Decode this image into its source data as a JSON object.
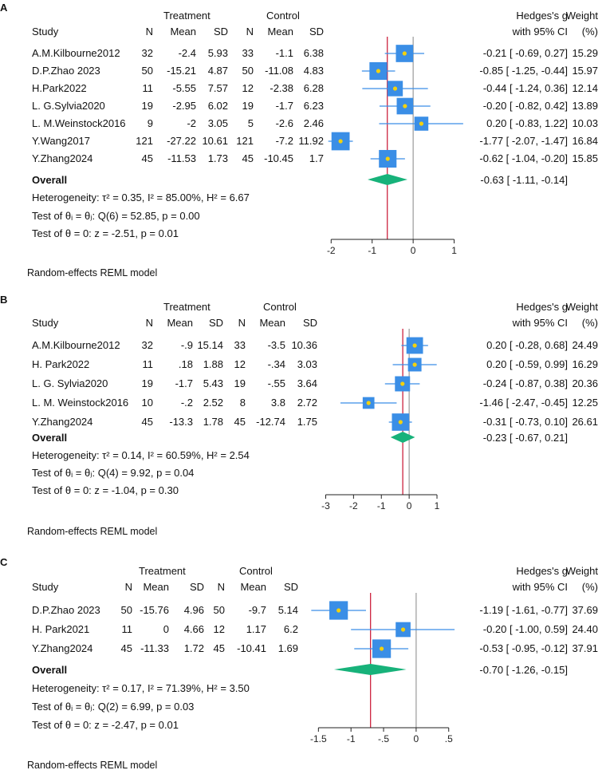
{
  "chart_data": [
    {
      "type": "forest",
      "panel_label": "A",
      "headers": {
        "study": "Study",
        "treatment": "Treatment",
        "control": "Control",
        "n": "N",
        "mean": "Mean",
        "sd": "SD",
        "effect_line1": "Hedges's g",
        "effect_line2": "with 95% CI",
        "weight_line1": "Weight",
        "weight_line2": "(%)"
      },
      "studies": [
        {
          "study": "A.M.Kilbourne2012",
          "t_n": "32",
          "t_mean": "-2.4",
          "t_sd": "5.93",
          "c_n": "33",
          "c_mean": "-1.1",
          "c_sd": "6.38",
          "g": -0.21,
          "lo": -0.69,
          "hi": 0.27,
          "ci_text": "-0.21 [ -0.69,  0.27]",
          "weight": 15.29,
          "weight_text": "15.29"
        },
        {
          "study": "D.P.Zhao 2023",
          "t_n": "50",
          "t_mean": "-15.21",
          "t_sd": "4.87",
          "c_n": "50",
          "c_mean": "-11.08",
          "c_sd": "4.83",
          "g": -0.85,
          "lo": -1.25,
          "hi": -0.44,
          "ci_text": "-0.85 [ -1.25, -0.44]",
          "weight": 15.97,
          "weight_text": "15.97"
        },
        {
          "study": "H.Park2022",
          "t_n": "11",
          "t_mean": "-5.55",
          "t_sd": "7.57",
          "c_n": "12",
          "c_mean": "-2.38",
          "c_sd": "6.28",
          "g": -0.44,
          "lo": -1.24,
          "hi": 0.36,
          "ci_text": "-0.44 [ -1.24,  0.36]",
          "weight": 12.14,
          "weight_text": "12.14"
        },
        {
          "study": "L. G.Sylvia2020",
          "t_n": "19",
          "t_mean": "-2.95",
          "t_sd": "6.02",
          "c_n": "19",
          "c_mean": "-1.7",
          "c_sd": "6.23",
          "g": -0.2,
          "lo": -0.82,
          "hi": 0.42,
          "ci_text": "-0.20 [ -0.82,  0.42]",
          "weight": 13.89,
          "weight_text": "13.89"
        },
        {
          "study": "L. M.Weinstock2016",
          "t_n": "9",
          "t_mean": "-2",
          "t_sd": "3.05",
          "c_n": "5",
          "c_mean": "-2.6",
          "c_sd": "2.46",
          "g": 0.2,
          "lo": -0.83,
          "hi": 1.22,
          "ci_text": "0.20 [ -0.83,  1.22]",
          "weight": 10.03,
          "weight_text": "10.03"
        },
        {
          "study": "Y.Wang2017",
          "t_n": "121",
          "t_mean": "-27.22",
          "t_sd": "10.61",
          "c_n": "121",
          "c_mean": "-7.2",
          "c_sd": "11.92",
          "g": -1.77,
          "lo": -2.07,
          "hi": -1.47,
          "ci_text": "-1.77 [ -2.07, -1.47]",
          "weight": 16.84,
          "weight_text": "16.84"
        },
        {
          "study": "Y.Zhang2024",
          "t_n": "45",
          "t_mean": "-11.53",
          "t_sd": "1.73",
          "c_n": "45",
          "c_mean": "-10.45",
          "c_sd": "1.7",
          "g": -0.62,
          "lo": -1.04,
          "hi": -0.2,
          "ci_text": "-0.62 [ -1.04, -0.20]",
          "weight": 15.85,
          "weight_text": "15.85"
        }
      ],
      "overall": {
        "label": "Overall",
        "g": -0.63,
        "lo": -1.11,
        "hi": -0.14,
        "ci_text": "-0.63 [ -1.11, -0.14]"
      },
      "stats": {
        "heterogeneity": "Heterogeneity: τ² = 0.35, I² = 85.00%, H² = 6.67",
        "test_equal": "Test of θᵢ = θⱼ: Q(6) = 52.85, p = 0.00",
        "test_zero": "Test of θ = 0: z = -2.51, p = 0.01"
      },
      "x_range": [
        -2.2,
        1.3
      ],
      "x_ticks": [
        -2,
        -1,
        0,
        1
      ],
      "x_tick_labels": [
        "-2",
        "-1",
        "0",
        "1"
      ],
      "footnote": "Random-effects REML model"
    },
    {
      "type": "forest",
      "panel_label": "B",
      "headers": {
        "study": "Study",
        "treatment": "Treatment",
        "control": "Control",
        "n": "N",
        "mean": "Mean",
        "sd": "SD",
        "effect_line1": "Hedges's g",
        "effect_line2": "with 95% CI",
        "weight_line1": "Weight",
        "weight_line2": "(%)"
      },
      "studies": [
        {
          "study": "A.M.Kilbourne2012",
          "t_n": "32",
          "t_mean": "-.9",
          "t_sd": "15.14",
          "c_n": "33",
          "c_mean": "-3.5",
          "c_sd": "10.36",
          "g": 0.2,
          "lo": -0.28,
          "hi": 0.68,
          "ci_text": "0.20 [ -0.28,  0.68]",
          "weight": 24.49,
          "weight_text": "24.49"
        },
        {
          "study": "H. Park2022",
          "t_n": "11",
          "t_mean": ".18",
          "t_sd": "1.88",
          "c_n": "12",
          "c_mean": "-.34",
          "c_sd": "3.03",
          "g": 0.2,
          "lo": -0.59,
          "hi": 0.99,
          "ci_text": "0.20 [ -0.59,  0.99]",
          "weight": 16.29,
          "weight_text": "16.29"
        },
        {
          "study": "L. G. Sylvia2020",
          "t_n": "19",
          "t_mean": "-1.7",
          "t_sd": "5.43",
          "c_n": "19",
          "c_mean": "-.55",
          "c_sd": "3.64",
          "g": -0.24,
          "lo": -0.87,
          "hi": 0.38,
          "ci_text": "-0.24 [ -0.87,  0.38]",
          "weight": 20.36,
          "weight_text": "20.36"
        },
        {
          "study": "L. M. Weinstock2016",
          "t_n": "10",
          "t_mean": "-.2",
          "t_sd": "2.52",
          "c_n": "8",
          "c_mean": "3.8",
          "c_sd": "2.72",
          "g": -1.46,
          "lo": -2.47,
          "hi": -0.45,
          "ci_text": "-1.46 [ -2.47, -0.45]",
          "weight": 12.25,
          "weight_text": "12.25"
        },
        {
          "study": "Y.Zhang2024",
          "t_n": "45",
          "t_mean": "-13.3",
          "t_sd": "1.78",
          "c_n": "45",
          "c_mean": "-12.74",
          "c_sd": "1.75",
          "g": -0.31,
          "lo": -0.73,
          "hi": 0.1,
          "ci_text": "-0.31 [ -0.73,  0.10]",
          "weight": 26.61,
          "weight_text": "26.61"
        }
      ],
      "overall": {
        "label": "Overall",
        "g": -0.23,
        "lo": -0.67,
        "hi": 0.21,
        "ci_text": "-0.23 [ -0.67,  0.21]"
      },
      "stats": {
        "heterogeneity": "Heterogeneity: τ² = 0.14, I² = 60.59%, H² = 2.54",
        "test_equal": "Test of θᵢ = θⱼ: Q(4) = 9.92, p = 0.04",
        "test_zero": "Test of θ = 0: z = -1.04, p = 0.30"
      },
      "x_range": [
        -3.1,
        1.2
      ],
      "x_ticks": [
        -3,
        -2,
        -1,
        0,
        1
      ],
      "x_tick_labels": [
        "-3",
        "-2",
        "-1",
        "0",
        "1"
      ],
      "footnote": "Random-effects REML model"
    },
    {
      "type": "forest",
      "panel_label": "C",
      "headers": {
        "study": "Study",
        "treatment": "Treatment",
        "control": "Control",
        "n": "N",
        "mean": "Mean",
        "sd": "SD",
        "effect_line1": "Hedges's g",
        "effect_line2": "with 95% CI",
        "weight_line1": "Weight",
        "weight_line2": "(%)"
      },
      "studies": [
        {
          "study": "D.P.Zhao 2023",
          "t_n": "50",
          "t_mean": "-15.76",
          "t_sd": "4.96",
          "c_n": "50",
          "c_mean": "-9.7",
          "c_sd": "5.14",
          "g": -1.19,
          "lo": -1.61,
          "hi": -0.77,
          "ci_text": "-1.19 [ -1.61, -0.77]",
          "weight": 37.69,
          "weight_text": "37.69"
        },
        {
          "study": "H. Park2021",
          "t_n": "11",
          "t_mean": "0",
          "t_sd": "4.66",
          "c_n": "12",
          "c_mean": "1.17",
          "c_sd": "6.2",
          "g": -0.2,
          "lo": -1.0,
          "hi": 0.59,
          "ci_text": "-0.20 [ -1.00,  0.59]",
          "weight": 24.4,
          "weight_text": "24.40"
        },
        {
          "study": "Y.Zhang2024",
          "t_n": "45",
          "t_mean": "-11.33",
          "t_sd": "1.72",
          "c_n": "45",
          "c_mean": "-10.41",
          "c_sd": "1.69",
          "g": -0.53,
          "lo": -0.95,
          "hi": -0.12,
          "ci_text": "-0.53 [ -0.95, -0.12]",
          "weight": 37.91,
          "weight_text": "37.91"
        }
      ],
      "overall": {
        "label": "Overall",
        "g": -0.7,
        "lo": -1.26,
        "hi": -0.15,
        "ci_text": "-0.70 [ -1.26, -0.15]"
      },
      "stats": {
        "heterogeneity": "Heterogeneity: τ² = 0.17, I² = 71.39%, H² = 3.50",
        "test_equal": "Test of θᵢ = θⱼ: Q(2) = 6.99, p = 0.03",
        "test_zero": "Test of θ = 0: z = -2.47, p = 0.01"
      },
      "x_range": [
        -1.7,
        0.65
      ],
      "x_ticks": [
        -1.5,
        -1,
        -0.5,
        0,
        0.5
      ],
      "x_tick_labels": [
        "-1.5",
        "-1",
        "-.5",
        "0",
        ".5"
      ],
      "footnote": "Random-effects REML model"
    }
  ],
  "colors": {
    "square": "#3a8ee6",
    "point": "#f2d10f",
    "ci_line": "#3a8ee6",
    "diamond": "#17b27a",
    "overall_line": "#c8102e",
    "null_line": "#9a9a9a",
    "axis": "#222222"
  }
}
